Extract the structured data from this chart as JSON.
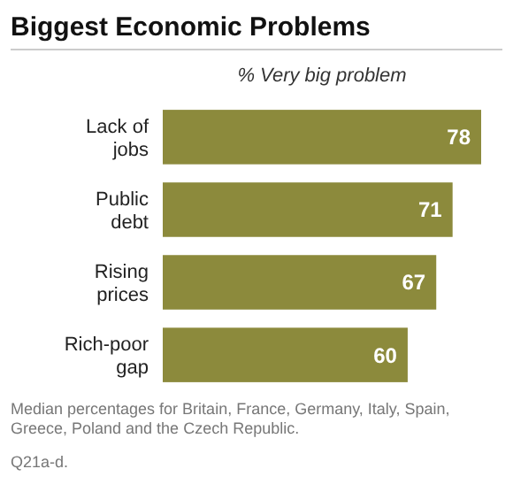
{
  "chart_data": {
    "type": "bar",
    "orientation": "horizontal",
    "title": "Biggest Economic Problems",
    "subtitle": "% Very big problem",
    "categories": [
      "Lack of jobs",
      "Public debt",
      "Rising prices",
      "Rich-poor gap"
    ],
    "values": [
      78,
      71,
      67,
      60
    ],
    "color": "#8c8a3c",
    "data_labels": true,
    "xlim": [
      0,
      78
    ],
    "annotations": [
      "Median percentages for Britain, France, Germany, Italy, Spain, Greece, Poland and the Czech Republic.",
      "Q21a-d."
    ]
  }
}
